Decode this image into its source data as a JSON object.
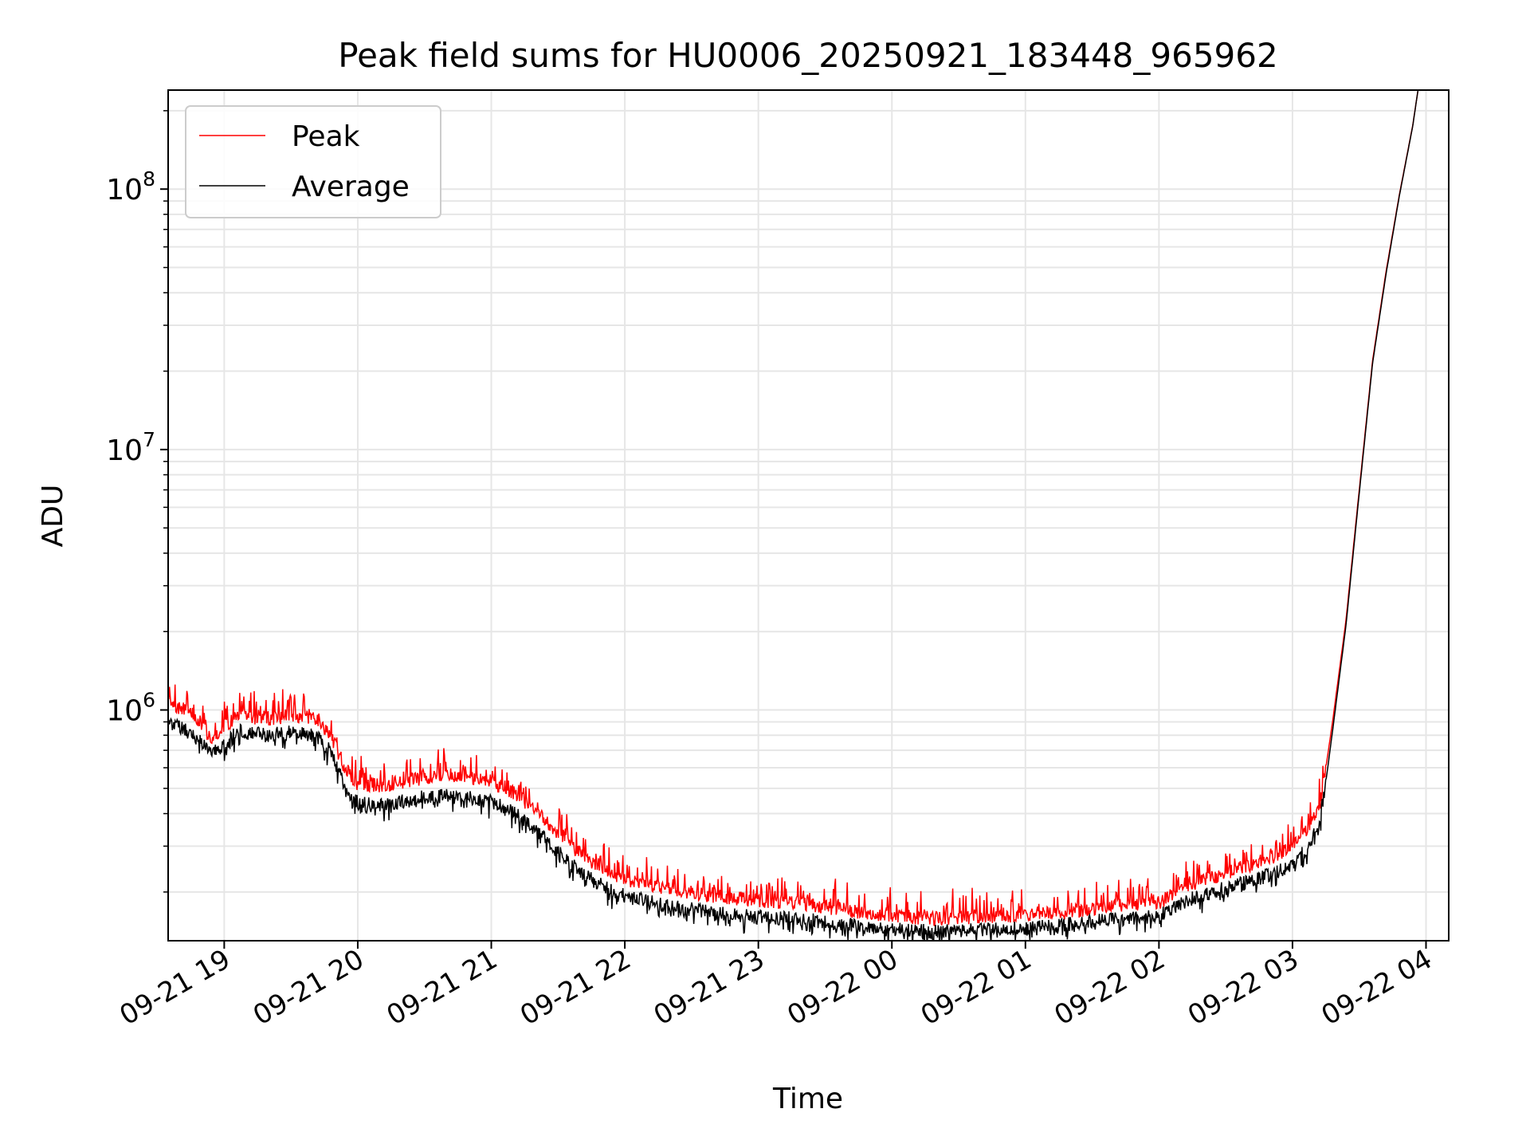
{
  "chart_data": {
    "type": "line",
    "title": "Peak field sums for HU0006_20250921_183448_965962",
    "xlabel": "Time",
    "ylabel": "ADU",
    "yscale": "log",
    "ylim": [
      130000,
      240000000
    ],
    "xlim_hours": [
      18.58,
      28.17
    ],
    "x_unit": "hours since 2025-09-21 00:00",
    "grid": true,
    "legend_position": "upper-left",
    "x_ticks": [
      {
        "hour": 19,
        "label": "09-21 19"
      },
      {
        "hour": 20,
        "label": "09-21 20"
      },
      {
        "hour": 21,
        "label": "09-21 21"
      },
      {
        "hour": 22,
        "label": "09-21 22"
      },
      {
        "hour": 23,
        "label": "09-21 23"
      },
      {
        "hour": 24,
        "label": "09-22 00"
      },
      {
        "hour": 25,
        "label": "09-22 01"
      },
      {
        "hour": 26,
        "label": "09-22 02"
      },
      {
        "hour": 27,
        "label": "09-22 03"
      },
      {
        "hour": 28,
        "label": "09-22 04"
      }
    ],
    "y_ticks": [
      {
        "value": 1000000,
        "base": "10",
        "exp": "6"
      },
      {
        "value": 10000000,
        "base": "10",
        "exp": "7"
      },
      {
        "value": 100000000,
        "base": "10",
        "exp": "8"
      }
    ],
    "series": [
      {
        "name": "Peak",
        "color": "#ff0000",
        "x": [
          18.58,
          18.75,
          18.9,
          19.0,
          19.1,
          19.3,
          19.5,
          19.7,
          19.8,
          19.9,
          20.0,
          20.2,
          20.4,
          20.6,
          20.8,
          21.0,
          21.2,
          21.4,
          21.6,
          21.8,
          22.0,
          22.3,
          22.6,
          23.0,
          23.3,
          23.6,
          24.0,
          24.3,
          24.6,
          25.0,
          25.3,
          25.6,
          26.0,
          26.2,
          26.4,
          26.6,
          26.8,
          27.0,
          27.1,
          27.2,
          27.25,
          27.3,
          27.4,
          27.5,
          27.6,
          27.7,
          27.8,
          27.9,
          27.94
        ],
        "values": [
          1050000,
          980000,
          780000,
          850000,
          960000,
          920000,
          950000,
          920000,
          800000,
          600000,
          520000,
          510000,
          540000,
          560000,
          555000,
          530000,
          470000,
          380000,
          300000,
          250000,
          225000,
          205000,
          195000,
          185000,
          182000,
          172000,
          162000,
          158000,
          160000,
          163000,
          167000,
          175000,
          182000,
          210000,
          228000,
          245000,
          265000,
          295000,
          340000,
          420000,
          600000,
          900000,
          2200000,
          7000000,
          22000000,
          48000000,
          95000000,
          175000000,
          240000000
        ]
      },
      {
        "name": "Average",
        "color": "#000000",
        "x": [
          18.58,
          18.75,
          18.9,
          19.0,
          19.1,
          19.3,
          19.5,
          19.7,
          19.8,
          19.9,
          20.0,
          20.2,
          20.4,
          20.6,
          20.8,
          21.0,
          21.2,
          21.4,
          21.6,
          21.8,
          22.0,
          22.3,
          22.6,
          23.0,
          23.3,
          23.6,
          24.0,
          24.3,
          24.6,
          25.0,
          25.3,
          25.6,
          26.0,
          26.2,
          26.4,
          26.6,
          26.8,
          27.0,
          27.1,
          27.2,
          27.25,
          27.3,
          27.4,
          27.5,
          27.6,
          27.7,
          27.8,
          27.9,
          27.94
        ],
        "values": [
          900000,
          830000,
          680000,
          730000,
          830000,
          800000,
          820000,
          790000,
          690000,
          510000,
          440000,
          430000,
          455000,
          470000,
          465000,
          445000,
          395000,
          320000,
          255000,
          215000,
          193000,
          178000,
          168000,
          160000,
          158000,
          151000,
          144000,
          141000,
          143000,
          146000,
          150000,
          156000,
          162000,
          185000,
          200000,
          214000,
          230000,
          255000,
          290000,
          360000,
          530000,
          830000,
          2100000,
          6800000,
          21500000,
          47000000,
          94000000,
          174000000,
          240000000
        ]
      }
    ]
  }
}
